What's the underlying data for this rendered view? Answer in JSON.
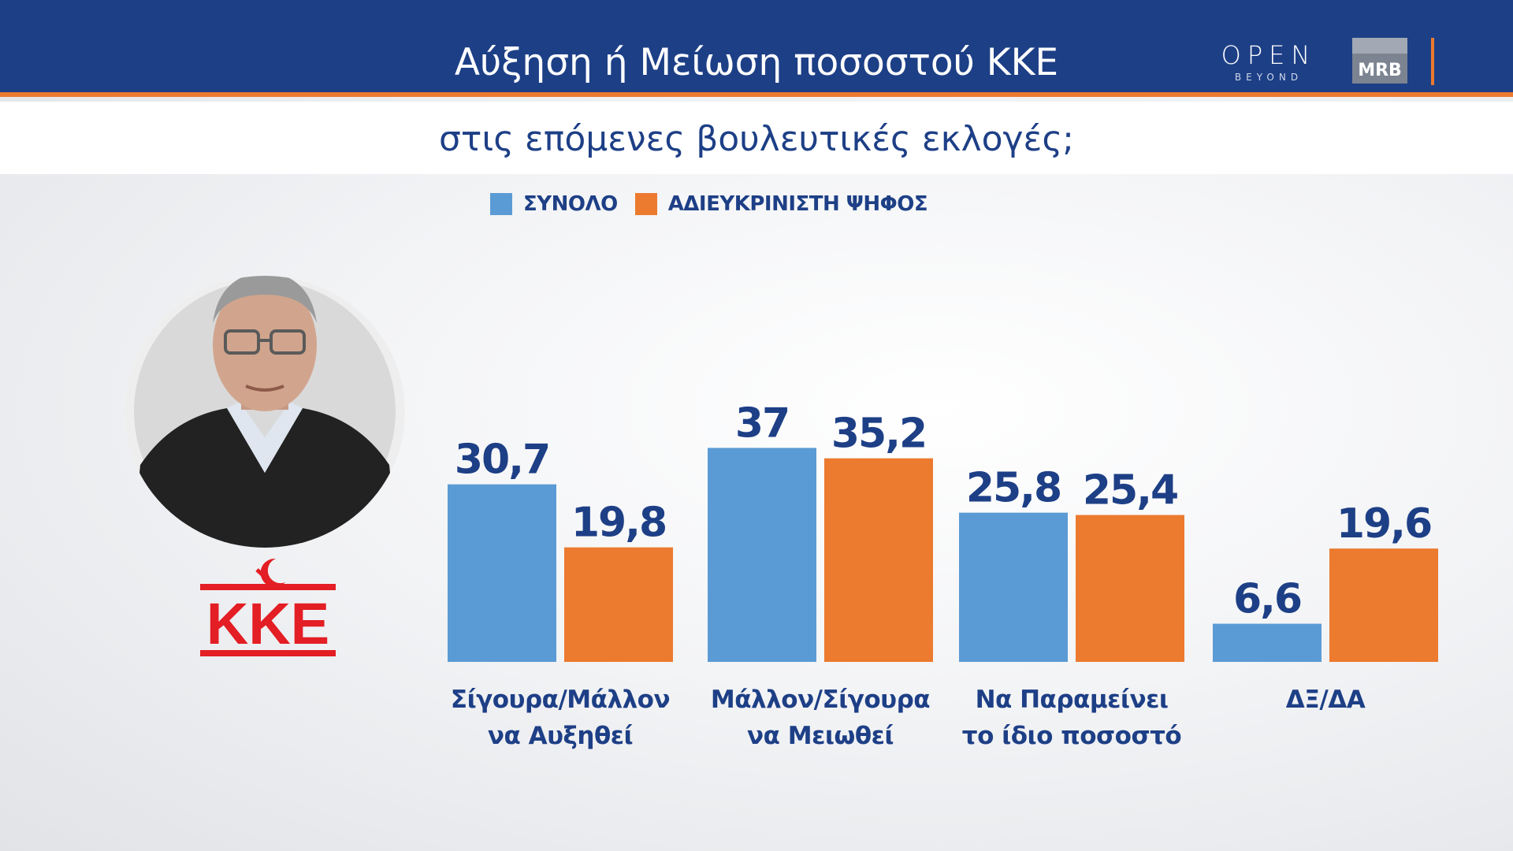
{
  "header": {
    "title": "Αύξηση ή Μείωση ποσοστού ΚΚΕ",
    "subtitle": "στις επόμενες βουλευτικές εκλογές;",
    "brand_open": "OPEN",
    "brand_beyond": "BEYOND",
    "brand_mrb": "MRB"
  },
  "logo": {
    "text": "KKE",
    "color": "#e31e24"
  },
  "colors": {
    "header_bg": "#1d3f86",
    "accent": "#ec7a2f",
    "text_blue": "#1d3f86",
    "series_total": "#5b9bd5",
    "series_undecided": "#ec7a2f"
  },
  "chart_data": {
    "type": "bar",
    "categories": [
      [
        "Σίγουρα/Μάλλον",
        "να Αυξηθεί"
      ],
      [
        "Μάλλον/Σίγουρα",
        "να Μειωθεί"
      ],
      [
        "Να Παραμείνει",
        "το ίδιο ποσοστό"
      ],
      [
        "ΔΞ/ΔΑ"
      ]
    ],
    "series": [
      {
        "name": "ΣΥΝΟΛΟ",
        "values": [
          30.7,
          37,
          25.8,
          6.6
        ],
        "labels": [
          "30,7",
          "37",
          "25,8",
          "6,6"
        ],
        "color": "#5b9bd5"
      },
      {
        "name": "ΑΔΙΕΥΚΡΙΝΙΣΤΗ ΨΗΦΟΣ",
        "values": [
          19.8,
          35.2,
          25.4,
          19.6
        ],
        "labels": [
          "19,8",
          "35,2",
          "25,4",
          "19,6"
        ],
        "color": "#ec7a2f"
      }
    ],
    "legend_position": "top",
    "grid": false
  }
}
